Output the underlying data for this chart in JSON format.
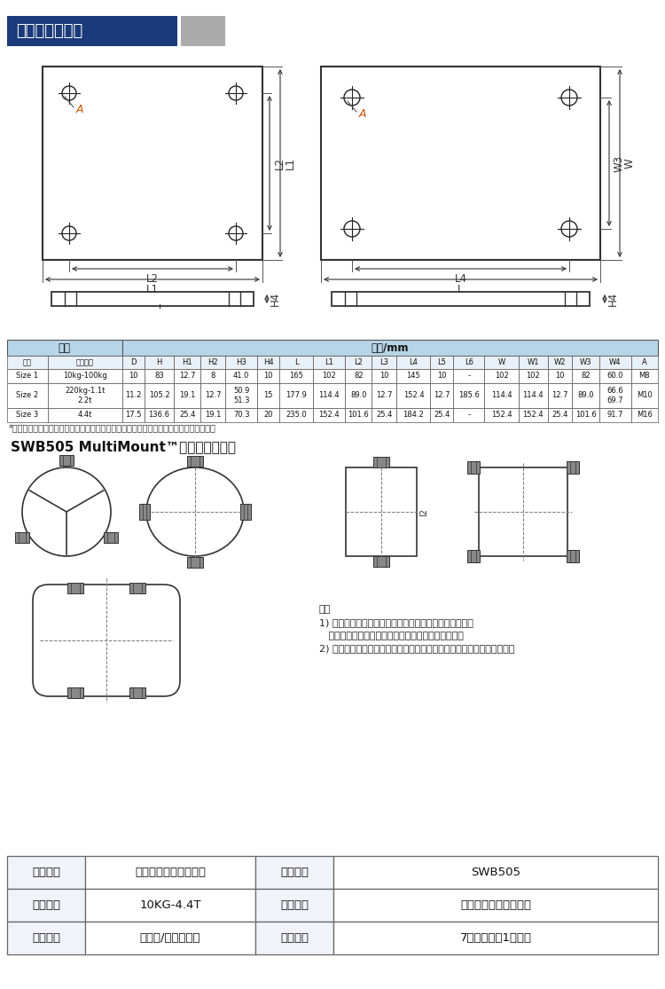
{
  "title_text": "过渡板外形尺寸",
  "title_bg": "#1a3a7a",
  "title_gray_box": "#aaaaaa",
  "bg_color": "#ffffff",
  "table_header_bg": "#b8d4e8",
  "table_border": "#555555",
  "section2_title": "SWB505 MultiMount™模块安装布置图",
  "note_text": "注：\n1) 水平拉杆用于稳定料罐在应用过程中产生的水平晃动。\n   例如：搅拌等。单只水平拉杆承载能力见技术指标。\n2) 若称重模块没有选配水平拉杆，称重模块安装方向无需按照图示要求。",
  "footnote": "*若整个模块的顶板和底板与过渡板连接后，再将过渡板与料罐支腿和基础预埋板焊焊接。",
  "product_table": {
    "rows": [
      [
        "产品名称",
        "梅特勒托利多称重模块",
        "产品型号",
        "SWB505"
      ],
      [
        "产品量程",
        "10KG-4.4T",
        "产品用途",
        "用于平台秤、电子秤等"
      ],
      [
        "产品材质",
        "合金钢/不锈钢材质",
        "产品质保",
        "7天包退换，1年保修"
      ]
    ]
  },
  "spec_table": {
    "col_headers": [
      "规格",
      "额定载荷",
      "D",
      "H",
      "H1",
      "H2",
      "H3",
      "H4",
      "L",
      "L1",
      "L2",
      "L3",
      "L4",
      "L5",
      "L6",
      "W",
      "W1",
      "W2",
      "W3",
      "W4",
      "A"
    ],
    "rows": [
      [
        "Size 1",
        "10kg-100kg",
        "10",
        "83",
        "12.7",
        "8",
        "41.0",
        "10",
        "165",
        "102",
        "82",
        "10",
        "145",
        "10",
        "-",
        "102",
        "102",
        "10",
        "82",
        "60.0",
        "M8"
      ],
      [
        "Size 2",
        "220kg-1.1t\n2.2t",
        "11.2",
        "105.2",
        "19.1",
        "12.7",
        "50.9\n51.3",
        "15",
        "177.9",
        "114.4",
        "89.0",
        "12.7",
        "152.4",
        "12.7",
        "185.6",
        "114.4",
        "114.4",
        "12.7",
        "89.0",
        "66.6\n69.7",
        "M10"
      ],
      [
        "Size 3",
        "4.4t",
        "17.5",
        "136.6",
        "25.4",
        "19.1",
        "70.3",
        "20",
        "235.0",
        "152.4",
        "101.6",
        "25.4",
        "184.2",
        "25.4",
        "-",
        "152.4",
        "152.4",
        "25.4",
        "101.6",
        "91.7",
        "M16"
      ]
    ],
    "header_label1": "项目",
    "header_label2": "尺寸/mm"
  }
}
